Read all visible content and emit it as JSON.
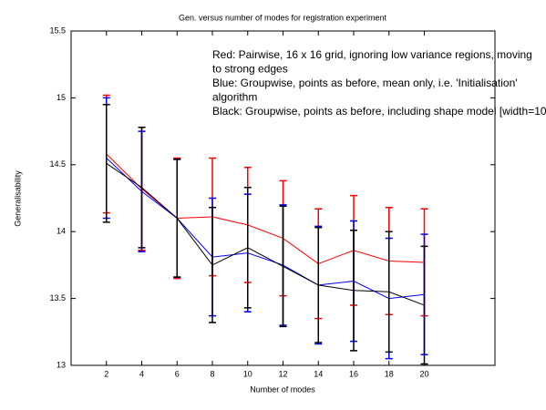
{
  "chart_data": {
    "type": "errorbar-line",
    "title": "Gen. versus number of modes for registration experiment",
    "x_label": "Number of modes",
    "y_label": "Generalisability",
    "annotations": [
      "Red: Pairwise, 16 x 16 grid, ignoring low variance regions, moving",
      "to strong edges",
      "Blue: Groupwise, points as before, mean only, i.e. 'Initialisation'",
      "algorithm",
      "Black: Groupwise, points as before, including shape model [width=10"
    ],
    "x": [
      2,
      4,
      6,
      8,
      10,
      12,
      14,
      16,
      18,
      20
    ],
    "xlim": [
      0,
      24
    ],
    "xticks": [
      2,
      4,
      6,
      8,
      10,
      12,
      14,
      16,
      18,
      20
    ],
    "ylim": [
      13,
      15.5
    ],
    "yticks": [
      13,
      13.5,
      14,
      14.5,
      15,
      15.5
    ],
    "series": [
      {
        "name": "Red",
        "color": "#ff0000",
        "values": [
          14.58,
          14.32,
          14.1,
          14.11,
          14.05,
          13.95,
          13.76,
          13.86,
          13.78,
          13.77
        ],
        "errors": [
          0.44,
          0.46,
          0.45,
          0.44,
          0.43,
          0.43,
          0.41,
          0.41,
          0.4,
          0.4
        ]
      },
      {
        "name": "Blue",
        "color": "#0000ff",
        "values": [
          14.55,
          14.3,
          14.1,
          13.81,
          13.84,
          13.75,
          13.6,
          13.63,
          13.5,
          13.53
        ],
        "errors": [
          0.45,
          0.45,
          0.44,
          0.44,
          0.44,
          0.45,
          0.44,
          0.45,
          0.45,
          0.45
        ]
      },
      {
        "name": "Black",
        "color": "#000000",
        "values": [
          14.51,
          14.33,
          14.1,
          13.75,
          13.88,
          13.74,
          13.6,
          13.56,
          13.55,
          13.45
        ],
        "errors": [
          0.44,
          0.45,
          0.44,
          0.43,
          0.45,
          0.45,
          0.43,
          0.45,
          0.45,
          0.44
        ]
      }
    ]
  }
}
